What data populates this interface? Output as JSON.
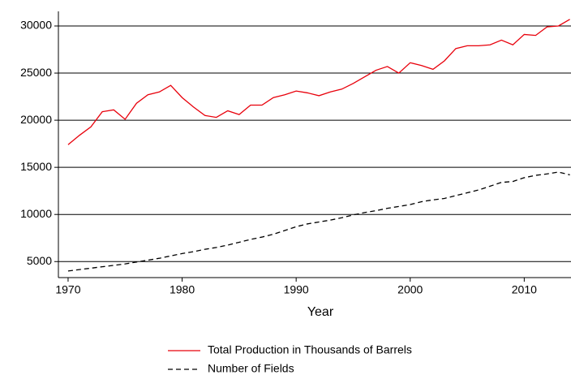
{
  "chart_data": {
    "type": "line",
    "x_label": "Year",
    "x": [
      1970,
      1971,
      1972,
      1973,
      1974,
      1975,
      1976,
      1977,
      1978,
      1979,
      1980,
      1981,
      1982,
      1983,
      1984,
      1985,
      1986,
      1987,
      1988,
      1989,
      1990,
      1991,
      1992,
      1993,
      1994,
      1995,
      1996,
      1997,
      1998,
      1999,
      2000,
      2001,
      2002,
      2003,
      2004,
      2005,
      2006,
      2007,
      2008,
      2009,
      2010,
      2011,
      2012,
      2013,
      2014
    ],
    "series": [
      {
        "name": "Total Production in Thousands of Barrels",
        "color": "#e8000b",
        "linestyle": "solid",
        "values": [
          17400,
          18400,
          19300,
          20900,
          21100,
          20100,
          21800,
          22700,
          23000,
          23700,
          22400,
          21400,
          20500,
          20300,
          21000,
          20600,
          21600,
          21600,
          22400,
          22700,
          23100,
          22900,
          22600,
          23000,
          23300,
          23900,
          24600,
          25300,
          25700,
          25000,
          26100,
          25800,
          25400,
          26300,
          27600,
          27900,
          27900,
          28000,
          28500,
          28000,
          29100,
          29000,
          29900,
          30000,
          30700
        ]
      },
      {
        "name": "Number of Fields",
        "color": "#000000",
        "linestyle": "dashed",
        "values": [
          4000,
          4150,
          4300,
          4450,
          4600,
          4750,
          4950,
          5150,
          5350,
          5600,
          5850,
          6050,
          6300,
          6500,
          6750,
          7050,
          7350,
          7600,
          7900,
          8300,
          8700,
          9000,
          9200,
          9400,
          9650,
          9950,
          10200,
          10400,
          10650,
          10850,
          11050,
          11350,
          11550,
          11700,
          12000,
          12300,
          12600,
          13000,
          13400,
          13500,
          13900,
          14150,
          14300,
          14500,
          14200
        ]
      }
    ],
    "xlim": [
      1969.15,
      2014.1
    ],
    "xticks": [
      1970,
      1980,
      1990,
      2000,
      2010
    ],
    "ylim": [
      3300,
      31550
    ],
    "yticks": [
      5000,
      10000,
      15000,
      20000,
      25000,
      30000
    ],
    "grid": true,
    "legend": "bottom"
  }
}
